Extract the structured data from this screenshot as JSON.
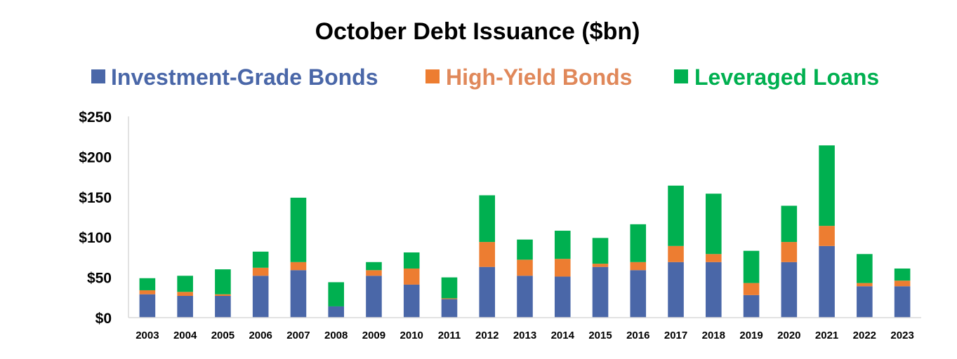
{
  "chart_data": {
    "type": "bar",
    "stacked": true,
    "title": "October Debt Issuance ($bn)",
    "xlabel": "",
    "ylabel": "",
    "ylim": [
      0,
      250
    ],
    "yticks": [
      0,
      50,
      100,
      150,
      200,
      250
    ],
    "ytick_labels": [
      "$0",
      "$50",
      "$100",
      "$150",
      "$200",
      "$250"
    ],
    "grid": false,
    "legend_position": "top",
    "categories": [
      "2003",
      "2004",
      "2005",
      "2006",
      "2007",
      "2008",
      "2009",
      "2010",
      "2011",
      "2012",
      "2013",
      "2014",
      "2015",
      "2016",
      "2017",
      "2018",
      "2019",
      "2020",
      "2021",
      "2022",
      "2023"
    ],
    "series": [
      {
        "name": "Investment-Grade Bonds",
        "color": "#4A67A8",
        "values": [
          29,
          27,
          27,
          52,
          59,
          14,
          52,
          41,
          23,
          63,
          52,
          51,
          63,
          59,
          69,
          69,
          28,
          69,
          89,
          39,
          39
        ]
      },
      {
        "name": "High-Yield Bonds",
        "color": "#ED7D31",
        "values": [
          5,
          5,
          2,
          10,
          10,
          0,
          7,
          20,
          1,
          31,
          20,
          22,
          4,
          10,
          20,
          10,
          15,
          25,
          25,
          4,
          7
        ]
      },
      {
        "name": "Leveraged Loans",
        "color": "#00B050",
        "values": [
          15,
          20,
          31,
          20,
          80,
          30,
          10,
          20,
          26,
          58,
          25,
          35,
          32,
          47,
          75,
          75,
          40,
          45,
          100,
          36,
          15
        ]
      }
    ]
  }
}
